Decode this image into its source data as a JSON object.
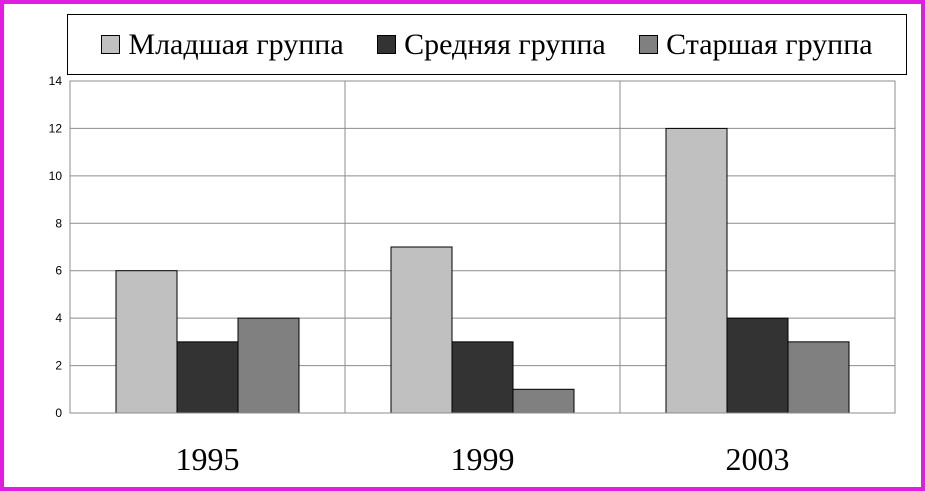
{
  "chart_data": {
    "type": "bar",
    "categories": [
      "1995",
      "1999",
      "2003"
    ],
    "series": [
      {
        "name": "Младшая группа",
        "values": [
          6,
          7,
          12
        ],
        "color": "#c0c0c0"
      },
      {
        "name": "Средняя группа",
        "values": [
          3,
          3,
          4
        ],
        "color": "#333333"
      },
      {
        "name": "Старшая группа",
        "values": [
          4,
          1,
          3
        ],
        "color": "#808080"
      }
    ],
    "ylim": [
      0,
      14
    ],
    "yticks": [
      "0",
      "2",
      "4",
      "6",
      "8",
      "10",
      "12",
      "14"
    ],
    "grid": true,
    "legend_position": "top",
    "frame_color": "#e01ee0"
  }
}
